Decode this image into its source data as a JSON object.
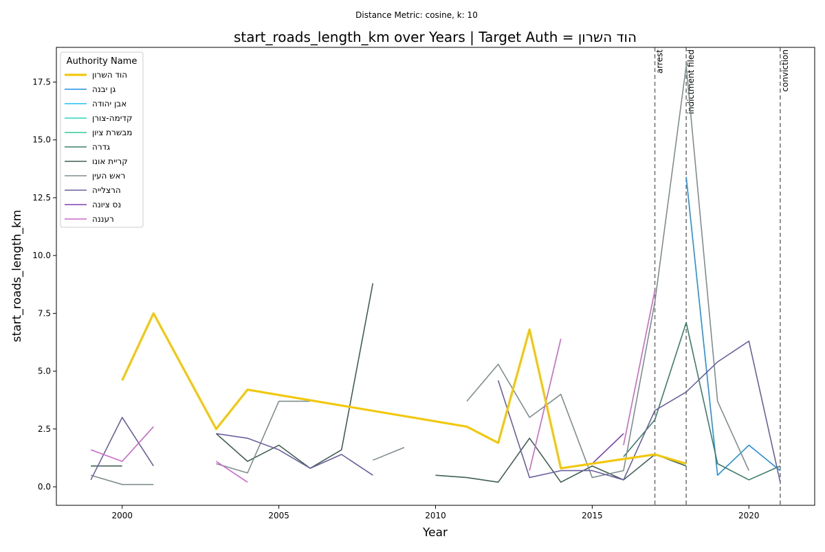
{
  "chart_data": {
    "type": "line",
    "suptitle": "Distance Metric: cosine, k: 10",
    "title": "start_roads_length_km over Years | Target Auth = הוד השרון",
    "xlabel": "Year",
    "ylabel": "start_roads_length_km",
    "xlim": [
      1997.9,
      2022.1
    ],
    "ylim": [
      -0.8,
      19.0
    ],
    "xticks": [
      2000,
      2005,
      2010,
      2015,
      2020
    ],
    "yticks": [
      0.0,
      2.5,
      5.0,
      7.5,
      10.0,
      12.5,
      15.0,
      17.5
    ],
    "grid": false,
    "legend": {
      "title": "Authority Name",
      "placement": "upper-left"
    },
    "events": [
      {
        "year": 2017,
        "label": "arrest"
      },
      {
        "year": 2018,
        "label": "indictment filed"
      },
      {
        "year": 2021,
        "label": "conviction"
      }
    ],
    "series": [
      {
        "name": "הוד השרון",
        "color": "#f2c80f",
        "target": true,
        "points": [
          [
            2000,
            4.6
          ],
          [
            2001,
            7.5
          ],
          [
            2003,
            2.5
          ],
          [
            2004,
            4.2
          ],
          [
            2011,
            2.6
          ],
          [
            2012,
            1.9
          ],
          [
            2013,
            6.8
          ],
          [
            2014,
            0.8
          ],
          [
            2017,
            1.4
          ],
          [
            2018,
            1.0
          ]
        ]
      },
      {
        "name": "גן יבנה",
        "color": "#1f8fe0",
        "points": [
          [
            2018,
            13.4
          ],
          [
            2019,
            0.5
          ],
          [
            2020,
            1.8
          ],
          [
            2021,
            0.7
          ]
        ]
      },
      {
        "name": "אבן יהודה",
        "color": "#1bc2f0",
        "points": []
      },
      {
        "name": "קדימה-צורן",
        "color": "#2cd3c0",
        "points": []
      },
      {
        "name": "מבשרת ציון",
        "color": "#2ecc8f",
        "points": []
      },
      {
        "name": "גדרה",
        "color": "#3a7d68",
        "points": [
          [
            2016,
            1.3
          ],
          [
            2017,
            2.9
          ],
          [
            2018,
            7.1
          ],
          [
            2019,
            1.0
          ],
          [
            2020,
            0.3
          ],
          [
            2021,
            0.9
          ]
        ]
      },
      {
        "name": "קריית אונו",
        "color": "#3f5f52",
        "points": [
          [
            1999,
            0.9
          ],
          [
            2000,
            0.9
          ],
          [
            null,
            null
          ],
          [
            2003,
            2.3
          ],
          [
            2004,
            1.1
          ],
          [
            2005,
            1.8
          ],
          [
            2006,
            0.8
          ],
          [
            2007,
            1.6
          ],
          [
            2008,
            8.8
          ],
          [
            null,
            null
          ],
          [
            2010,
            0.5
          ],
          [
            2011,
            0.4
          ],
          [
            2012,
            0.2
          ],
          [
            2013,
            2.1
          ],
          [
            2014,
            0.2
          ],
          [
            2015,
            0.9
          ],
          [
            2016,
            0.3
          ],
          [
            2017,
            1.4
          ],
          [
            2018,
            0.9
          ]
        ]
      },
      {
        "name": "ראש העין",
        "color": "#7f8c8d",
        "points": [
          [
            1999,
            0.5
          ],
          [
            2000,
            0.1
          ],
          [
            2001,
            0.1
          ],
          [
            null,
            null
          ],
          [
            2003,
            1.0
          ],
          [
            2004,
            0.6
          ],
          [
            2005,
            3.7
          ],
          [
            2006,
            3.7
          ],
          [
            null,
            null
          ],
          [
            2008,
            1.15
          ],
          [
            2009,
            1.7
          ],
          [
            null,
            null
          ],
          [
            2011,
            3.7
          ],
          [
            2012,
            5.3
          ],
          [
            2013,
            3.0
          ],
          [
            2014,
            4.0
          ],
          [
            2015,
            0.4
          ],
          [
            2016,
            0.7
          ],
          [
            2017,
            8.0
          ],
          [
            2018,
            18.2
          ],
          [
            2019,
            3.7
          ],
          [
            2020,
            0.7
          ]
        ]
      },
      {
        "name": "הרצלייה",
        "color": "#6a5f9e",
        "points": [
          [
            1999,
            0.3
          ],
          [
            2000,
            3.0
          ],
          [
            2001,
            0.9
          ],
          [
            null,
            null
          ],
          [
            2003,
            2.3
          ],
          [
            2004,
            2.1
          ],
          [
            2005,
            1.6
          ],
          [
            2006,
            0.8
          ],
          [
            2007,
            1.4
          ],
          [
            2008,
            0.5
          ],
          [
            null,
            null
          ],
          [
            2012,
            4.6
          ],
          [
            2013,
            0.4
          ],
          [
            2014,
            0.7
          ],
          [
            2015,
            0.7
          ],
          [
            2016,
            0.3
          ],
          [
            2017,
            3.3
          ],
          [
            2018,
            4.1
          ],
          [
            2019,
            5.4
          ],
          [
            2020,
            6.3
          ],
          [
            2021,
            0.2
          ]
        ]
      },
      {
        "name": "נס ציונה",
        "color": "#7d3fb0",
        "points": [
          [
            2015,
            1.0
          ],
          [
            2016,
            2.3
          ]
        ]
      },
      {
        "name": "רעננה",
        "color": "#cc66cc",
        "points": [
          [
            1999,
            1.6
          ],
          [
            2000,
            1.1
          ],
          [
            2001,
            2.6
          ],
          [
            null,
            null
          ],
          [
            2003,
            1.1
          ],
          [
            2004,
            0.2
          ],
          [
            null,
            null
          ],
          [
            2013,
            0.7
          ],
          [
            2014,
            6.4
          ],
          [
            null,
            null
          ],
          [
            2016,
            1.8
          ],
          [
            2017,
            8.5
          ]
        ]
      }
    ]
  }
}
